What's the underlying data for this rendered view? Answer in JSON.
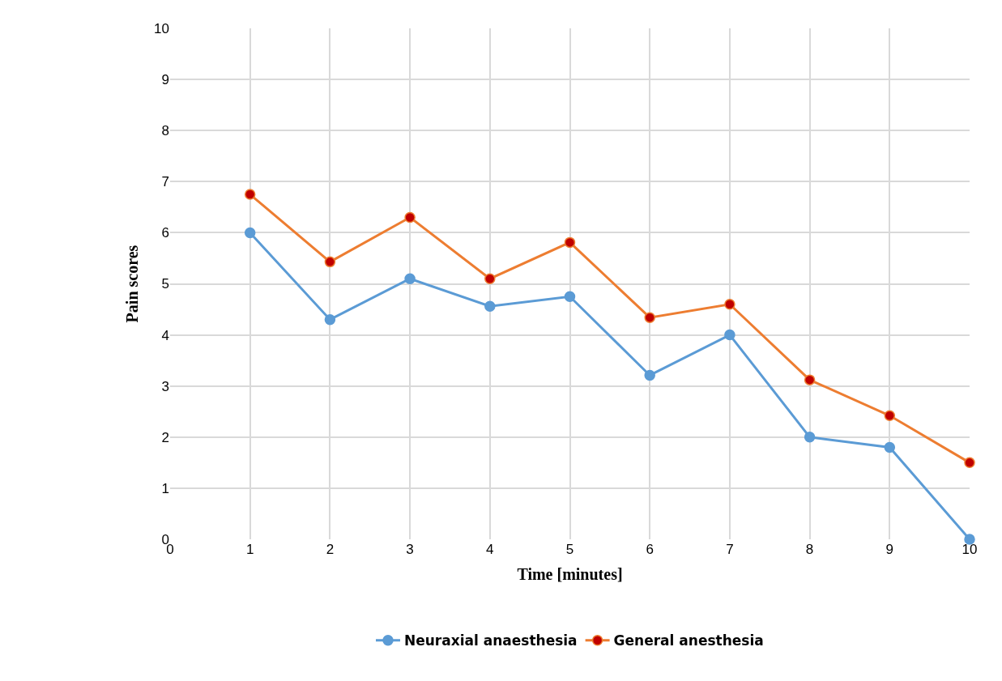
{
  "chart_data": {
    "type": "line",
    "xlabel": "Time [minutes]",
    "ylabel": "Pain scores",
    "x": [
      1,
      2,
      3,
      4,
      5,
      6,
      7,
      8,
      9,
      10
    ],
    "series": [
      {
        "name": "Neuraxial anaesthesia",
        "color": "#5b9bd5",
        "values": [
          6.0,
          4.3,
          5.1,
          4.56,
          4.75,
          3.21,
          4.0,
          2.0,
          1.8,
          0
        ]
      },
      {
        "name": "General anesthesia",
        "color": "#ed7d31",
        "values": [
          6.75,
          5.43,
          6.3,
          5.1,
          5.81,
          4.34,
          4.6,
          3.12,
          2.42,
          1.5
        ]
      }
    ],
    "xlim": [
      0,
      10
    ],
    "xticks": [
      0,
      1,
      2,
      3,
      4,
      5,
      6,
      7,
      8,
      9,
      10
    ],
    "ylim": [
      0,
      10
    ],
    "yticks": [
      0,
      1,
      2,
      3,
      4,
      5,
      6,
      7,
      8,
      9,
      10
    ],
    "grid": true,
    "legend": "bottom",
    "marker": "circle",
    "line_style": "solid"
  }
}
